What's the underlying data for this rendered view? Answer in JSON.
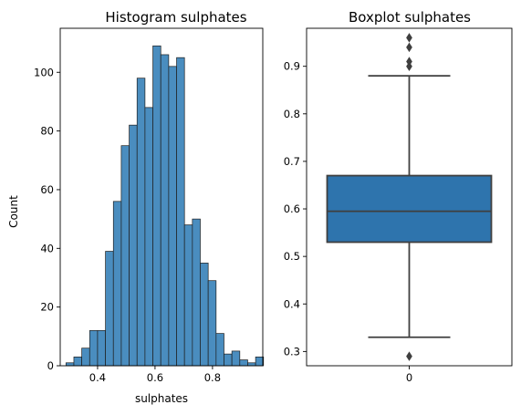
{
  "chart_data": [
    {
      "type": "bar",
      "subtype": "histogram",
      "title": "Histogram sulphates",
      "xlabel": "sulphates",
      "ylabel": "Count",
      "xlim": [
        0.27,
        0.975
      ],
      "ylim": [
        0,
        115
      ],
      "xticks": [
        "0.4",
        "0.6",
        "0.8"
      ],
      "xtick_values": [
        0.4,
        0.6,
        0.8
      ],
      "yticks": [
        "0",
        "20",
        "40",
        "60",
        "80",
        "100"
      ],
      "ytick_values": [
        0,
        20,
        40,
        60,
        80,
        100
      ],
      "bin_start": 0.29,
      "bin_width": 0.0275,
      "counts": [
        1,
        3,
        6,
        12,
        12,
        39,
        56,
        75,
        82,
        98,
        88,
        109,
        106,
        102,
        105,
        48,
        50,
        35,
        29,
        11,
        4,
        5,
        2,
        1,
        3
      ],
      "bar_color": "#4a8dbf",
      "edge_color": "#1f1f1f"
    },
    {
      "type": "box",
      "title": "Boxplot sulphates",
      "xlabel": "",
      "ylabel": "",
      "categories": [
        "0"
      ],
      "ylim": [
        0.27,
        0.98
      ],
      "yticks": [
        "0.3",
        "0.4",
        "0.5",
        "0.6",
        "0.7",
        "0.8",
        "0.9"
      ],
      "ytick_values": [
        0.3,
        0.4,
        0.5,
        0.6,
        0.7,
        0.8,
        0.9
      ],
      "whisker_low": 0.33,
      "q1": 0.53,
      "median": 0.595,
      "q3": 0.67,
      "whisker_high": 0.88,
      "outliers": [
        0.29,
        0.9,
        0.91,
        0.94,
        0.96
      ],
      "box_color": "#2e74ad",
      "line_color": "#3f3f3f"
    }
  ]
}
